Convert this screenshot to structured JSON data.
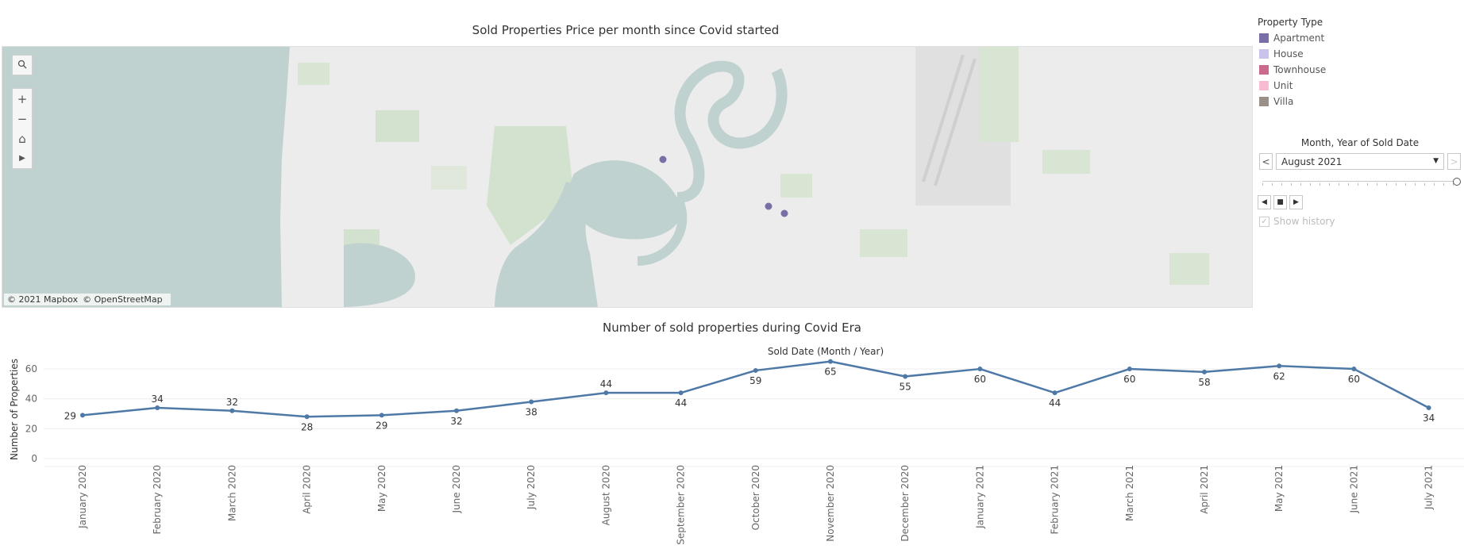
{
  "map": {
    "title": "Sold Properties Price per month since Covid started",
    "attribution": [
      "© 2021 Mapbox",
      "© OpenStreetMap"
    ],
    "tools": {
      "search_icon": "search-icon",
      "zoom_in": "+",
      "zoom_out": "−",
      "home": "⌂",
      "pan": "▶"
    },
    "points": [
      {
        "property_type": "Apartment"
      },
      {
        "property_type": "Apartment"
      },
      {
        "property_type": "Apartment"
      }
    ]
  },
  "legend": {
    "title": "Property Type",
    "items": [
      {
        "label": "Apartment",
        "color": "#7a6ea6"
      },
      {
        "label": "House",
        "color": "#c8c2ec"
      },
      {
        "label": "Townhouse",
        "color": "#c9698e"
      },
      {
        "label": "Unit",
        "color": "#f7bcd2"
      },
      {
        "label": "Villa",
        "color": "#9b8f8a"
      }
    ]
  },
  "filter": {
    "title": "Month, Year of Sold Date",
    "selected": "August 2021",
    "prev": "<",
    "next": ">",
    "show_history": "Show history",
    "show_history_checked": true
  },
  "chart_data": {
    "type": "line",
    "title": "Number of sold properties during Covid Era",
    "xlabel": "Sold Date (Month / Year)",
    "ylabel": "Number of Properties",
    "yticks": [
      0,
      20,
      40,
      60
    ],
    "ylim": [
      0,
      68
    ],
    "color": "#4e79a7",
    "grid": true,
    "categories": [
      "January 2020",
      "February 2020",
      "March 2020",
      "April 2020",
      "May 2020",
      "June 2020",
      "July 2020",
      "August 2020",
      "September 2020",
      "October 2020",
      "November 2020",
      "December 2020",
      "January 2021",
      "February 2021",
      "March 2021",
      "April 2021",
      "May 2021",
      "June 2021",
      "July 2021"
    ],
    "values": [
      29,
      34,
      32,
      28,
      29,
      32,
      38,
      44,
      44,
      59,
      65,
      55,
      60,
      44,
      60,
      58,
      62,
      60,
      34
    ]
  }
}
